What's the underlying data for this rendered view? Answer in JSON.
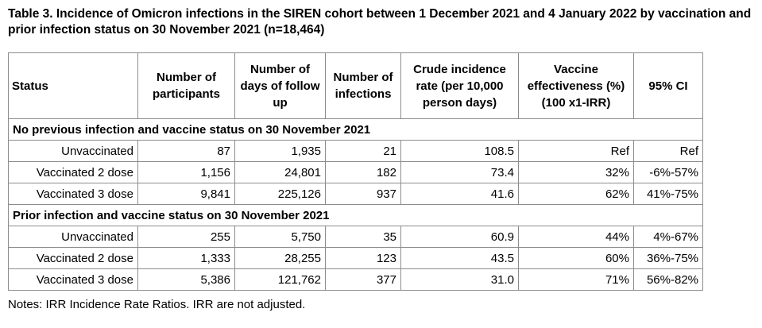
{
  "title": "Table 3. Incidence of Omicron infections in the SIREN cohort between 1 December 2021 and 4 January 2022 by vaccination and prior infection status on 30 November 2021 (n=18,464)",
  "headers": {
    "status": "Status",
    "participants": "Number of participants",
    "days": "Number of days of follow up",
    "infections": "Number of infections",
    "rate": "Crude incidence rate (per 10,000 person days)",
    "ve": "Vaccine effectiveness (%) (100 x1-IRR)",
    "ci": "95% CI"
  },
  "sections": [
    {
      "label": "No previous infection and vaccine status on 30 November 2021",
      "rows": [
        {
          "status": "Unvaccinated",
          "participants": "87",
          "days": "1,935",
          "infections": "21",
          "rate": "108.5",
          "ve": "Ref",
          "ci": "Ref"
        },
        {
          "status": "Vaccinated 2 dose",
          "participants": "1,156",
          "days": "24,801",
          "infections": "182",
          "rate": "73.4",
          "ve": "32%",
          "ci": "-6%-57%"
        },
        {
          "status": "Vaccinated 3 dose",
          "participants": "9,841",
          "days": "225,126",
          "infections": "937",
          "rate": "41.6",
          "ve": "62%",
          "ci": "41%-75%"
        }
      ]
    },
    {
      "label": "Prior infection and vaccine status on 30 November 2021",
      "rows": [
        {
          "status": "Unvaccinated",
          "participants": "255",
          "days": "5,750",
          "infections": "35",
          "rate": "60.9",
          "ve": "44%",
          "ci": "4%-67%"
        },
        {
          "status": "Vaccinated 2 dose",
          "participants": "1,333",
          "days": "28,255",
          "infections": "123",
          "rate": "43.5",
          "ve": "60%",
          "ci": "36%-75%"
        },
        {
          "status": "Vaccinated 3 dose",
          "participants": "5,386",
          "days": "121,762",
          "infections": "377",
          "rate": "31.0",
          "ve": "71%",
          "ci": "56%-82%"
        }
      ]
    }
  ],
  "notes": "Notes: IRR Incidence Rate Ratios. IRR are not adjusted."
}
